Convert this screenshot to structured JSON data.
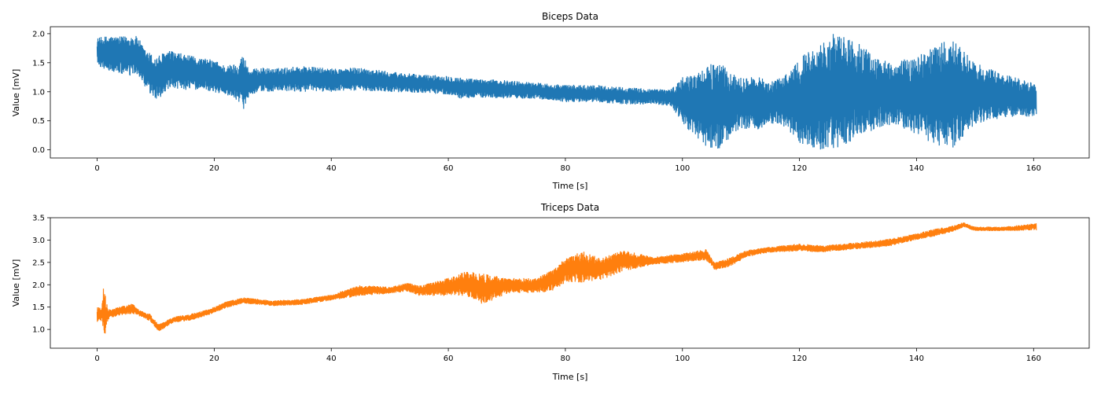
{
  "chart_data": [
    {
      "type": "line",
      "title": "Biceps Data",
      "xlabel": "Time [s]",
      "ylabel": "Value [mV]",
      "xlim": [
        -8,
        169.5
      ],
      "ylim": [
        -0.14,
        2.12
      ],
      "xticks": [
        0,
        20,
        40,
        60,
        80,
        100,
        120,
        140,
        160
      ],
      "yticks": [
        0.0,
        0.5,
        1.0,
        1.5,
        2.0
      ],
      "ytick_labels": [
        "0.0",
        "0.5",
        "1.0",
        "1.5",
        "2.0"
      ],
      "color": "#1f77b4",
      "series": [
        {
          "x": [
            0,
            2,
            4,
            6,
            7,
            8,
            10,
            12,
            14,
            16,
            18,
            20,
            22,
            24,
            25,
            26,
            28,
            30,
            35,
            40,
            45,
            50,
            55,
            60,
            62,
            65,
            70,
            75,
            80,
            85,
            90,
            95,
            98,
            100,
            103,
            106,
            108,
            110,
            113,
            116,
            118,
            120,
            123,
            126,
            130,
            133,
            136,
            140,
            143,
            146,
            150,
            155,
            160.5
          ],
          "upper": [
            1.93,
            1.97,
            1.95,
            1.98,
            1.95,
            1.75,
            1.6,
            1.72,
            1.67,
            1.62,
            1.58,
            1.55,
            1.45,
            1.5,
            1.66,
            1.38,
            1.42,
            1.4,
            1.45,
            1.4,
            1.42,
            1.35,
            1.3,
            1.28,
            1.25,
            1.22,
            1.2,
            1.16,
            1.12,
            1.12,
            1.08,
            1.05,
            1.05,
            1.25,
            1.36,
            1.55,
            1.35,
            1.25,
            1.25,
            1.2,
            1.35,
            1.6,
            1.8,
            2.02,
            1.85,
            1.6,
            1.5,
            1.62,
            1.8,
            1.92,
            1.5,
            1.3,
            1.15
          ],
          "lower": [
            1.45,
            1.35,
            1.3,
            1.25,
            1.3,
            1.05,
            0.85,
            1.0,
            1.05,
            1.02,
            1.05,
            0.98,
            0.95,
            0.85,
            0.7,
            0.95,
            1.0,
            1.0,
            1.0,
            1.0,
            1.02,
            1.0,
            0.98,
            0.95,
            0.88,
            0.9,
            0.88,
            0.88,
            0.82,
            0.82,
            0.78,
            0.78,
            0.75,
            0.45,
            0.1,
            -0.02,
            0.2,
            0.35,
            0.35,
            0.45,
            0.35,
            0.1,
            -0.02,
            0.0,
            0.2,
            0.35,
            0.45,
            0.25,
            0.1,
            0.0,
            0.45,
            0.55,
            0.58
          ]
        }
      ]
    },
    {
      "type": "line",
      "title": "Triceps Data",
      "xlabel": "Time [s]",
      "ylabel": "Value [mV]",
      "xlim": [
        -8,
        169.5
      ],
      "ylim": [
        0.58,
        3.5
      ],
      "xticks": [
        0,
        20,
        40,
        60,
        80,
        100,
        120,
        140,
        160
      ],
      "yticks": [
        1.0,
        1.5,
        2.0,
        2.5,
        3.0,
        3.5
      ],
      "ytick_labels": [
        "1.0",
        "1.5",
        "2.0",
        "2.5",
        "3.0",
        "3.5"
      ],
      "color": "#ff7f0e",
      "series": [
        {
          "x": [
            0,
            0.8,
            1.2,
            1.5,
            2.2,
            4,
            6,
            7.5,
            9,
            10.5,
            13,
            16,
            19,
            22,
            25,
            30,
            35,
            40,
            45,
            50,
            53,
            55,
            60,
            63,
            66,
            70,
            75,
            78,
            80,
            83,
            86,
            90,
            95,
            100,
            104,
            105.5,
            108,
            111,
            115,
            120,
            124,
            130,
            135,
            140,
            143,
            146,
            148,
            150,
            155,
            160.5
          ],
          "upper": [
            1.5,
            1.5,
            2.15,
            1.6,
            1.45,
            1.52,
            1.58,
            1.42,
            1.35,
            1.12,
            1.28,
            1.35,
            1.45,
            1.62,
            1.72,
            1.65,
            1.68,
            1.78,
            2.0,
            1.95,
            2.05,
            1.98,
            2.15,
            2.3,
            2.25,
            2.15,
            2.15,
            2.35,
            2.6,
            2.75,
            2.6,
            2.78,
            2.62,
            2.7,
            2.8,
            2.5,
            2.6,
            2.78,
            2.85,
            2.92,
            2.88,
            2.95,
            3.02,
            3.15,
            3.25,
            3.32,
            3.4,
            3.3,
            3.3,
            3.38
          ],
          "lower": [
            1.15,
            1.2,
            0.68,
            1.05,
            1.25,
            1.32,
            1.35,
            1.28,
            1.18,
            0.95,
            1.15,
            1.2,
            1.32,
            1.48,
            1.58,
            1.52,
            1.55,
            1.65,
            1.75,
            1.8,
            1.85,
            1.75,
            1.75,
            1.75,
            1.55,
            1.8,
            1.82,
            1.85,
            2.05,
            2.05,
            2.1,
            2.3,
            2.45,
            2.5,
            2.55,
            2.32,
            2.4,
            2.62,
            2.72,
            2.75,
            2.72,
            2.8,
            2.85,
            3.0,
            3.08,
            3.18,
            3.28,
            3.2,
            3.2,
            3.22
          ]
        }
      ]
    }
  ]
}
